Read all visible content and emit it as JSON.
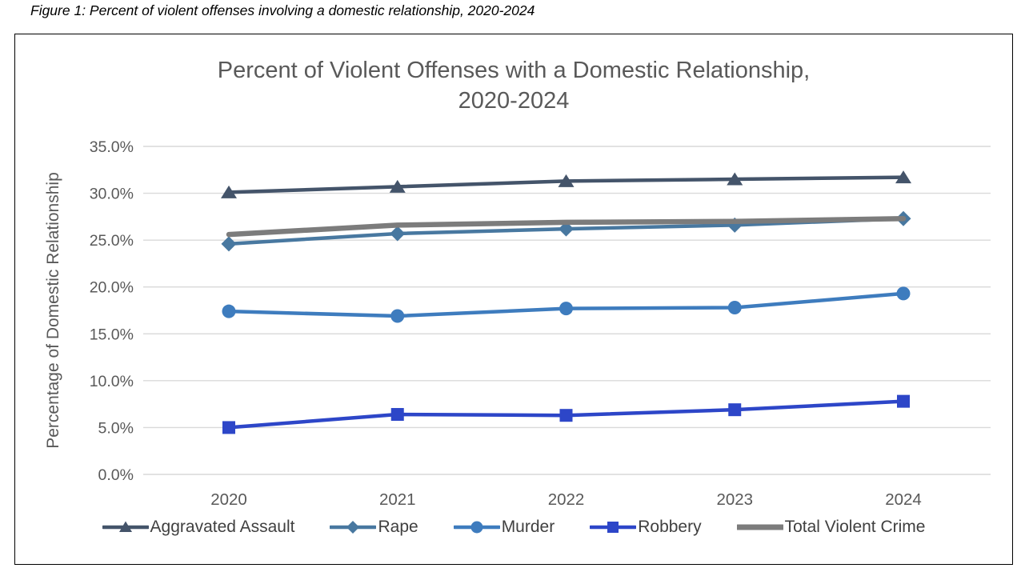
{
  "caption": "Figure 1: Percent of violent offenses involving a domestic relationship, 2020-2024",
  "chart_data": {
    "type": "line",
    "title_line1": "Percent of Violent Offenses with a Domestic Relationship,",
    "title_line2": "2020-2024",
    "ylabel": "Percentage of Domestic Relationship",
    "xlabel": "",
    "x": [
      "2020",
      "2021",
      "2022",
      "2023",
      "2024"
    ],
    "ylim": [
      0,
      35
    ],
    "ytick_step": 5,
    "ytick_labels": [
      "0.0%",
      "5.0%",
      "10.0%",
      "15.0%",
      "20.0%",
      "25.0%",
      "30.0%",
      "35.0%"
    ],
    "grid": true,
    "legend_position": "bottom",
    "series": [
      {
        "name": "Aggravated Assault",
        "marker": "triangle",
        "color": "#44546A",
        "line_width": 4.5,
        "values": [
          30.1,
          30.7,
          31.3,
          31.5,
          31.7
        ]
      },
      {
        "name": "Rape",
        "marker": "diamond",
        "color": "#4878A0",
        "line_width": 4.5,
        "values": [
          24.6,
          25.7,
          26.2,
          26.6,
          27.3
        ]
      },
      {
        "name": "Murder",
        "marker": "circle",
        "color": "#3E7CBE",
        "line_width": 4.5,
        "values": [
          17.4,
          16.9,
          17.7,
          17.8,
          19.3
        ]
      },
      {
        "name": "Robbery",
        "marker": "square",
        "color": "#2D46C8",
        "line_width": 4.5,
        "values": [
          5.0,
          6.4,
          6.3,
          6.9,
          7.8
        ]
      },
      {
        "name": "Total Violent Crime",
        "marker": "none",
        "color": "#7C7C7C",
        "line_width": 6.5,
        "values": [
          25.6,
          26.6,
          26.9,
          27.0,
          27.3
        ]
      }
    ],
    "colors": {
      "grid": "#D9D9D9",
      "axis_text": "#595959",
      "title_text": "#595959",
      "legend_text": "#404040",
      "border": "#000000",
      "background": "#FFFFFF"
    }
  }
}
